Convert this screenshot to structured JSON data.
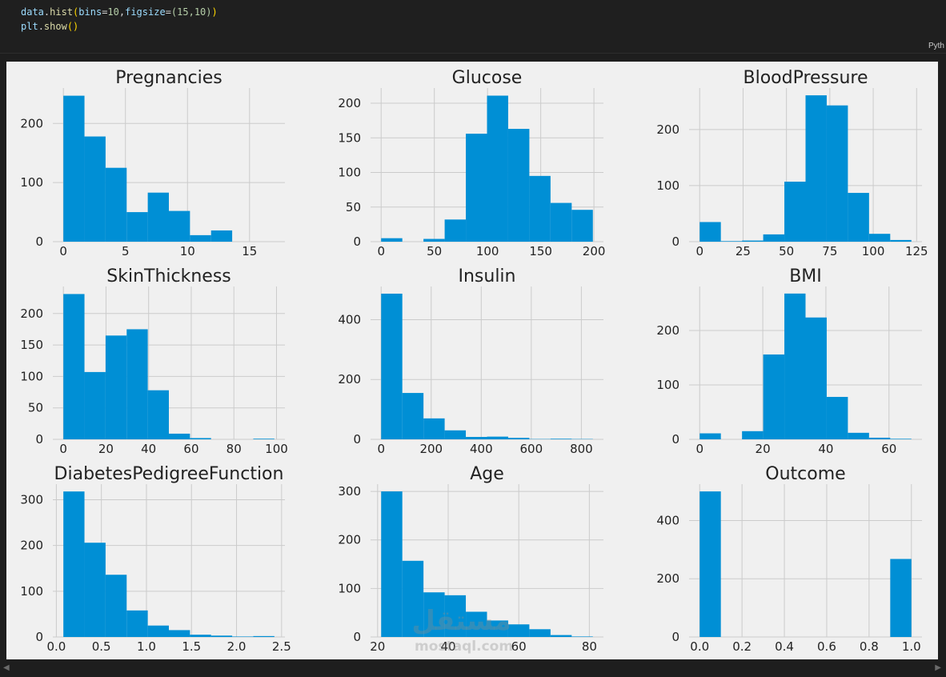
{
  "code": {
    "line1": {
      "obj": "data",
      "dot": ".",
      "fn": "hist",
      "open": "(",
      "arg1": "bins",
      "eq1": "=",
      "val1": "10",
      "comma1": ",",
      "arg2": "figsize",
      "eq2": "=",
      "tuple": "(15,10)",
      "close": ")"
    },
    "line2": {
      "obj": "plt",
      "dot": ".",
      "fn": "show",
      "parens": "()"
    }
  },
  "language_label": "Pyth",
  "watermark": {
    "arabic": "مستقل",
    "latin": "mostaql.com"
  },
  "colors": {
    "bar": "#008fd5",
    "background": "#f0f0f0",
    "grid": "#cbcbcb",
    "text": "#222222"
  },
  "chart_data": [
    {
      "type": "bar",
      "title": "Pregnancies",
      "bin_edges": [
        0,
        1.7,
        3.4,
        5.1,
        6.8,
        8.5,
        10.2,
        11.9,
        13.6,
        15.3,
        17
      ],
      "values": [
        247,
        178,
        125,
        50,
        83,
        52,
        11,
        19,
        0,
        0
      ],
      "xticks": [
        0,
        5,
        10,
        15
      ],
      "xlim": [
        -0.85,
        17.85
      ],
      "yticks": [
        0,
        100,
        200
      ],
      "ylim": [
        0,
        260
      ]
    },
    {
      "type": "bar",
      "title": "Glucose",
      "bin_edges": [
        0,
        19.9,
        39.8,
        59.7,
        79.6,
        99.5,
        119.4,
        139.3,
        159.2,
        179.1,
        199
      ],
      "values": [
        5,
        0,
        4,
        32,
        156,
        211,
        163,
        95,
        56,
        46
      ],
      "xticks": [
        0,
        50,
        100,
        150,
        200
      ],
      "xlim": [
        -9.95,
        208.95
      ],
      "yticks": [
        0,
        50,
        100,
        150,
        200
      ],
      "ylim": [
        0,
        222
      ]
    },
    {
      "type": "bar",
      "title": "BloodPressure",
      "bin_edges": [
        0,
        12.2,
        24.4,
        36.6,
        48.8,
        61,
        73.2,
        85.4,
        97.6,
        109.8,
        122
      ],
      "values": [
        35,
        1,
        2,
        13,
        107,
        261,
        243,
        87,
        14,
        3
      ],
      "xticks": [
        0,
        25,
        50,
        75,
        100,
        125
      ],
      "xlim": [
        -6.1,
        128.1
      ],
      "yticks": [
        0,
        100,
        200
      ],
      "ylim": [
        0,
        274
      ]
    },
    {
      "type": "bar",
      "title": "SkinThickness",
      "bin_edges": [
        0,
        9.9,
        19.8,
        29.7,
        39.6,
        49.5,
        59.4,
        69.3,
        79.2,
        89.1,
        99
      ],
      "values": [
        231,
        107,
        165,
        175,
        78,
        9,
        2,
        0,
        0,
        1
      ],
      "xticks": [
        0,
        20,
        40,
        60,
        80,
        100
      ],
      "xlim": [
        -4.95,
        103.95
      ],
      "yticks": [
        0,
        50,
        100,
        150,
        200
      ],
      "ylim": [
        0,
        243
      ]
    },
    {
      "type": "bar",
      "title": "Insulin",
      "bin_edges": [
        0,
        84.6,
        169.2,
        253.8,
        338.4,
        423,
        507.6,
        592.2,
        676.8,
        761.4,
        846
      ],
      "values": [
        487,
        155,
        70,
        30,
        8,
        9,
        5,
        1,
        2,
        1
      ],
      "xticks": [
        0,
        200,
        400,
        600,
        800
      ],
      "xlim": [
        -42.3,
        888.3
      ],
      "yticks": [
        0,
        200,
        400
      ],
      "ylim": [
        0,
        511
      ]
    },
    {
      "type": "bar",
      "title": "BMI",
      "bin_edges": [
        0,
        6.71,
        13.42,
        20.13,
        26.84,
        33.55,
        40.26,
        46.97,
        53.68,
        60.39,
        67.1
      ],
      "values": [
        11,
        0,
        15,
        156,
        268,
        224,
        78,
        12,
        3,
        1
      ],
      "xticks": [
        0,
        20,
        40,
        60
      ],
      "xlim": [
        -3.36,
        70.46
      ],
      "yticks": [
        0,
        100,
        200
      ],
      "ylim": [
        0,
        281
      ]
    },
    {
      "type": "bar",
      "title": "DiabetesPedigreeFunction",
      "bin_edges": [
        0.078,
        0.3122,
        0.5464,
        0.7806,
        1.0148,
        1.249,
        1.4832,
        1.7174,
        1.9516,
        2.1858,
        2.42
      ],
      "values": [
        318,
        206,
        136,
        58,
        25,
        15,
        5,
        3,
        1,
        2
      ],
      "xticks": [
        "0.0",
        "0.5",
        "1.0",
        "1.5",
        "2.0",
        "2.5"
      ],
      "xlim": [
        -0.039,
        2.537
      ],
      "yticks": [
        0,
        100,
        200,
        300
      ],
      "ylim": [
        0,
        334
      ]
    },
    {
      "type": "bar",
      "title": "Age",
      "bin_edges": [
        21,
        27,
        33,
        39,
        45,
        51,
        57,
        63,
        69,
        75,
        81
      ],
      "values": [
        300,
        157,
        92,
        86,
        52,
        34,
        26,
        16,
        4,
        1
      ],
      "xticks": [
        20,
        40,
        60,
        80
      ],
      "xlim": [
        18,
        84
      ],
      "yticks": [
        0,
        100,
        200,
        300
      ],
      "ylim": [
        0,
        315
      ]
    },
    {
      "type": "bar",
      "title": "Outcome",
      "bin_edges": [
        0,
        0.1,
        0.2,
        0.3,
        0.4,
        0.5,
        0.6,
        0.7,
        0.8,
        0.9,
        1.0
      ],
      "values": [
        500,
        0,
        0,
        0,
        0,
        0,
        0,
        0,
        0,
        268
      ],
      "xticks": [
        "0.0",
        "0.2",
        "0.4",
        "0.6",
        "0.8",
        "1.0"
      ],
      "xlim": [
        -0.05,
        1.05
      ],
      "yticks": [
        0,
        200,
        400
      ],
      "ylim": [
        0,
        525
      ]
    }
  ]
}
